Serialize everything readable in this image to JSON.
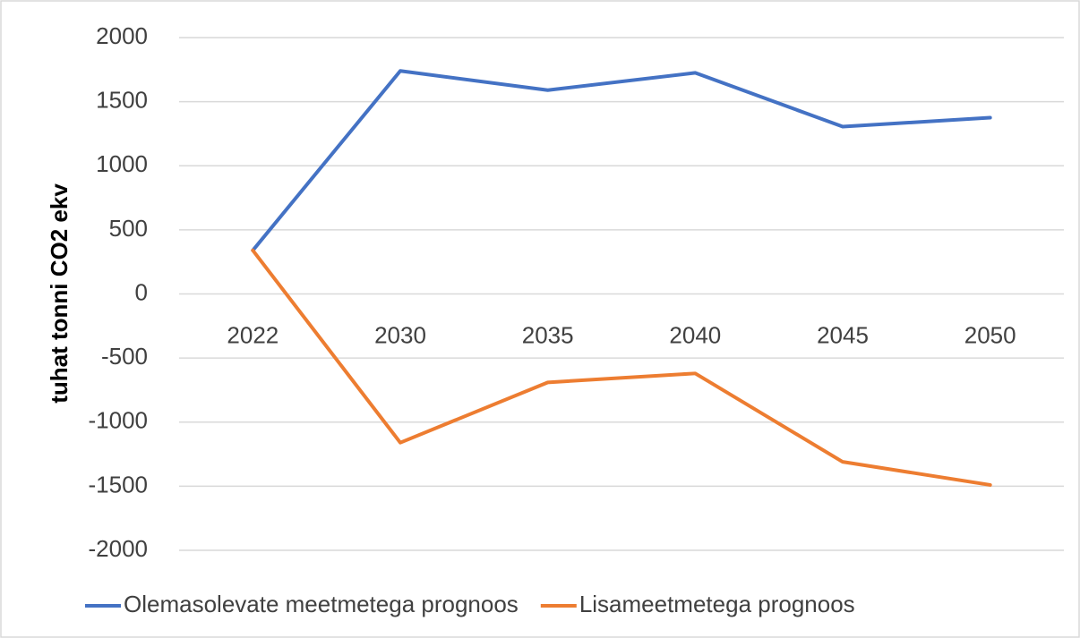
{
  "chart_data": {
    "type": "line",
    "y_label": "tuhat tonni CO2 ekv",
    "categories": [
      "2022",
      "2030",
      "2035",
      "2040",
      "2045",
      "2050"
    ],
    "series": [
      {
        "name": "Olemasolevate meetmetega prognoos",
        "color": "#4472c4",
        "values": [
          340,
          1740,
          1590,
          1725,
          1305,
          1375
        ]
      },
      {
        "name": "Lisameetmetega prognoos",
        "color": "#ed7d31",
        "values": [
          340,
          -1160,
          -690,
          -620,
          -1310,
          -1490
        ]
      }
    ],
    "ylim": [
      -2000,
      2000
    ],
    "yticks": [
      -2000,
      -1500,
      -1000,
      -500,
      0,
      500,
      1000,
      1500,
      2000
    ],
    "grid": true,
    "legend": "bottom"
  }
}
